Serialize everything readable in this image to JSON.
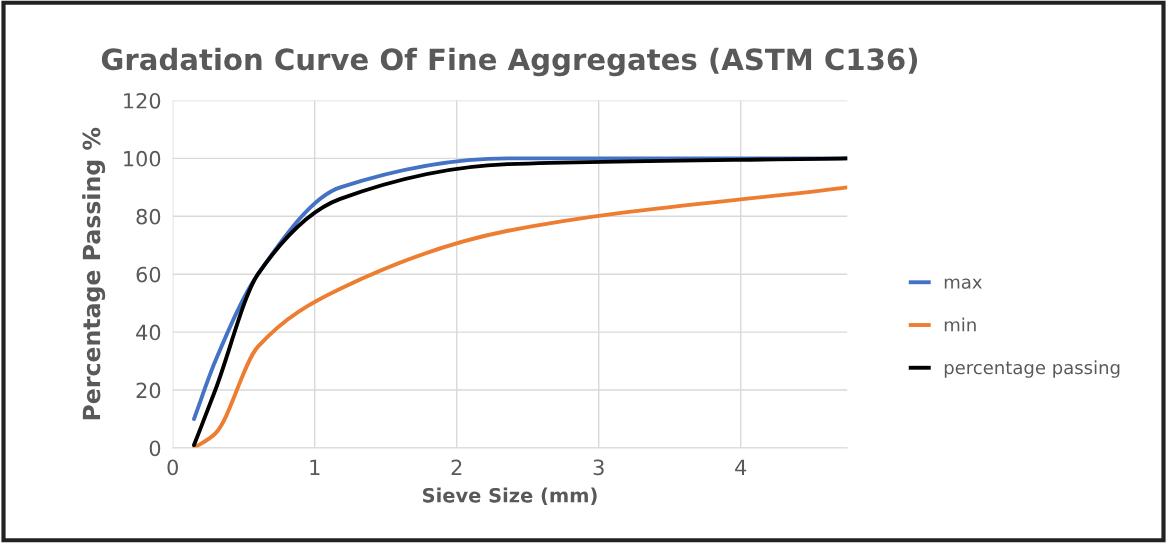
{
  "chart_data": {
    "type": "line",
    "title": "Gradation Curve Of Fine Aggregates (ASTM C136)",
    "xlabel": "Sieve Size (mm)",
    "ylabel": "Percentage Passing %",
    "x": [
      0.15,
      0.3,
      0.6,
      1.18,
      2.36,
      4.75
    ],
    "series": [
      {
        "name": "max",
        "color": "#4472c4",
        "values": [
          10,
          30,
          60,
          90,
          100,
          100
        ]
      },
      {
        "name": "min",
        "color": "#ed7d31",
        "values": [
          0,
          5,
          35,
          55,
          75,
          90
        ]
      },
      {
        "name": "percentage passing",
        "color": "#000000",
        "values": [
          1,
          20,
          60,
          86,
          98,
          100
        ]
      }
    ],
    "xlim": [
      0,
      4.75
    ],
    "xticks": [
      0,
      1,
      2,
      3,
      4
    ],
    "ylim": [
      0,
      120
    ],
    "yticks": [
      0,
      20,
      40,
      60,
      80,
      100,
      120
    ],
    "grid": true,
    "legend": "right",
    "marker": "none",
    "line_style": "solid"
  }
}
